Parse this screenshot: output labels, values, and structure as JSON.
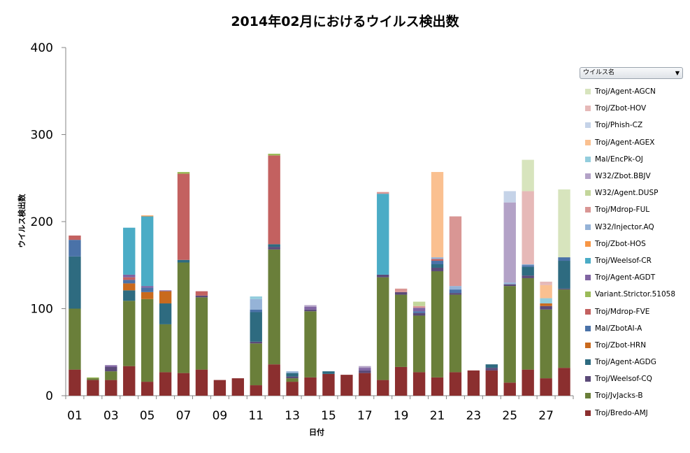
{
  "chart_data": {
    "type": "bar",
    "stacked": true,
    "title": "2014年02月におけるウイルス検出数",
    "xlabel": "日付",
    "ylabel": "ウイルス検出数",
    "ylim": [
      0,
      400
    ],
    "yticks": [
      0,
      100,
      200,
      300,
      400
    ],
    "categories": [
      "01",
      "02",
      "03",
      "04",
      "05",
      "06",
      "07",
      "08",
      "09",
      "10",
      "11",
      "12",
      "13",
      "14",
      "15",
      "16",
      "17",
      "18",
      "19",
      "20",
      "21",
      "22",
      "23",
      "24",
      "25",
      "26",
      "27",
      "28"
    ],
    "xtick_labels": [
      "01",
      "03",
      "05",
      "07",
      "09",
      "11",
      "13",
      "15",
      "17",
      "19",
      "21",
      "23",
      "25",
      "27"
    ],
    "legend_title": "ウイルス名",
    "series": [
      {
        "name": "Troj/Bredo-AMJ",
        "color": "#8b2f2f",
        "values": [
          30,
          18,
          18,
          34,
          16,
          27,
          26,
          30,
          18,
          20,
          12,
          36,
          16,
          21,
          25,
          24,
          26,
          18,
          33,
          27,
          21,
          27,
          29,
          29,
          15,
          30,
          20,
          32
        ]
      },
      {
        "name": "Troj/JvJacks-B",
        "color": "#6a7f3a",
        "values": [
          70,
          2,
          10,
          75,
          95,
          55,
          127,
          83,
          0,
          0,
          48,
          132,
          4,
          76,
          0,
          0,
          0,
          118,
          83,
          65,
          122,
          89,
          0,
          0,
          111,
          105,
          79,
          90
        ]
      },
      {
        "name": "Troj/Weelsof-CQ",
        "color": "#5b4a78",
        "values": [
          0,
          0,
          5,
          0,
          0,
          0,
          0,
          2,
          0,
          0,
          2,
          3,
          2,
          2,
          0,
          0,
          3,
          3,
          3,
          3,
          4,
          2,
          0,
          3,
          2,
          3,
          4,
          1
        ]
      },
      {
        "name": "Troj/Agent-AGDG",
        "color": "#2e6b80",
        "values": [
          60,
          0,
          0,
          12,
          0,
          24,
          3,
          0,
          0,
          0,
          34,
          3,
          4,
          0,
          3,
          0,
          0,
          0,
          0,
          0,
          4,
          0,
          0,
          4,
          0,
          10,
          0,
          32
        ]
      },
      {
        "name": "Troj/Zbot-HRN",
        "color": "#c96a1e",
        "values": [
          0,
          0,
          0,
          8,
          8,
          14,
          0,
          0,
          0,
          0,
          0,
          0,
          0,
          0,
          0,
          0,
          0,
          0,
          0,
          0,
          0,
          0,
          0,
          0,
          0,
          0,
          3,
          0
        ]
      },
      {
        "name": "Mal/ZbotAI-A",
        "color": "#4a72a8",
        "values": [
          19,
          0,
          0,
          4,
          5,
          0,
          0,
          0,
          0,
          0,
          3,
          0,
          0,
          0,
          0,
          0,
          0,
          0,
          0,
          2,
          4,
          4,
          0,
          0,
          0,
          2,
          0,
          4
        ]
      },
      {
        "name": "Troj/Mdrop-FVE",
        "color": "#c36160",
        "values": [
          5,
          0,
          0,
          3,
          0,
          0,
          99,
          5,
          0,
          0,
          0,
          102,
          0,
          0,
          0,
          0,
          0,
          0,
          0,
          0,
          2,
          0,
          0,
          0,
          0,
          0,
          0,
          0
        ]
      },
      {
        "name": "Variant.Strictor.51058",
        "color": "#9bbb59",
        "values": [
          0,
          1,
          0,
          0,
          0,
          0,
          2,
          0,
          0,
          0,
          0,
          2,
          0,
          0,
          0,
          0,
          0,
          0,
          0,
          0,
          0,
          0,
          0,
          0,
          0,
          0,
          0,
          0
        ]
      },
      {
        "name": "Troj/Agent-AGDT",
        "color": "#8064a2",
        "values": [
          0,
          0,
          2,
          3,
          2,
          1,
          0,
          0,
          0,
          0,
          0,
          0,
          0,
          3,
          0,
          0,
          3,
          0,
          0,
          4,
          0,
          0,
          0,
          0,
          0,
          0,
          0,
          0
        ]
      },
      {
        "name": "Troj/Weelsof-CR",
        "color": "#4bacc6",
        "values": [
          0,
          0,
          0,
          54,
          80,
          0,
          0,
          0,
          0,
          0,
          0,
          0,
          0,
          0,
          0,
          0,
          0,
          93,
          0,
          0,
          0,
          0,
          0,
          0,
          0,
          0,
          0,
          0
        ]
      },
      {
        "name": "Troj/Zbot-HOS",
        "color": "#f79646",
        "values": [
          0,
          0,
          0,
          0,
          1,
          0,
          0,
          0,
          0,
          0,
          0,
          0,
          0,
          0,
          0,
          0,
          0,
          0,
          0,
          0,
          0,
          0,
          0,
          0,
          0,
          0,
          0,
          0
        ]
      },
      {
        "name": "W32/Injector.AQ",
        "color": "#95b3d7",
        "values": [
          0,
          0,
          0,
          0,
          0,
          0,
          0,
          0,
          0,
          0,
          12,
          0,
          2,
          0,
          0,
          0,
          0,
          0,
          0,
          0,
          2,
          4,
          0,
          0,
          2,
          1,
          0,
          0
        ]
      },
      {
        "name": "Troj/Mdrop-FUL",
        "color": "#d99694",
        "values": [
          0,
          0,
          0,
          0,
          0,
          0,
          0,
          0,
          0,
          0,
          0,
          0,
          0,
          0,
          0,
          0,
          0,
          2,
          4,
          2,
          0,
          80,
          0,
          0,
          0,
          0,
          0,
          0
        ]
      },
      {
        "name": "W32/Agent.DUSP",
        "color": "#c3d69b",
        "values": [
          0,
          0,
          0,
          0,
          0,
          0,
          0,
          0,
          0,
          0,
          0,
          0,
          0,
          0,
          0,
          0,
          0,
          0,
          0,
          5,
          0,
          0,
          0,
          0,
          0,
          0,
          0,
          0
        ]
      },
      {
        "name": "W32/Zbot.BBJV",
        "color": "#b3a2c7",
        "values": [
          0,
          0,
          0,
          0,
          0,
          0,
          0,
          0,
          0,
          0,
          0,
          0,
          0,
          2,
          0,
          0,
          2,
          0,
          0,
          0,
          0,
          0,
          0,
          0,
          92,
          0,
          0,
          0
        ]
      },
      {
        "name": "Mal/EncPk-OJ",
        "color": "#93cddd",
        "values": [
          0,
          0,
          0,
          0,
          0,
          0,
          0,
          0,
          0,
          0,
          3,
          0,
          0,
          0,
          0,
          0,
          0,
          0,
          0,
          0,
          0,
          0,
          0,
          0,
          0,
          0,
          6,
          0
        ]
      },
      {
        "name": "Troj/Agent-AGEX",
        "color": "#fac090",
        "values": [
          0,
          0,
          0,
          0,
          0,
          0,
          0,
          0,
          0,
          0,
          0,
          0,
          0,
          0,
          0,
          0,
          0,
          0,
          0,
          0,
          98,
          0,
          0,
          0,
          0,
          0,
          15,
          0
        ]
      },
      {
        "name": "Troj/Phish-CZ",
        "color": "#c5d3e8",
        "values": [
          0,
          0,
          0,
          0,
          0,
          0,
          0,
          0,
          0,
          0,
          0,
          0,
          0,
          0,
          0,
          0,
          0,
          0,
          0,
          0,
          0,
          0,
          0,
          0,
          13,
          0,
          0,
          0
        ]
      },
      {
        "name": "Troj/Zbot-HOV",
        "color": "#e6b9b8",
        "values": [
          0,
          0,
          0,
          0,
          0,
          0,
          0,
          0,
          0,
          0,
          0,
          0,
          0,
          0,
          0,
          0,
          0,
          0,
          0,
          0,
          0,
          0,
          0,
          0,
          0,
          84,
          4,
          0
        ]
      },
      {
        "name": "Troj/Agent-AGCN",
        "color": "#d7e4bd",
        "values": [
          0,
          0,
          0,
          0,
          0,
          0,
          0,
          0,
          0,
          0,
          0,
          0,
          0,
          0,
          0,
          0,
          0,
          0,
          0,
          0,
          0,
          0,
          0,
          0,
          0,
          36,
          0,
          78
        ]
      }
    ]
  }
}
